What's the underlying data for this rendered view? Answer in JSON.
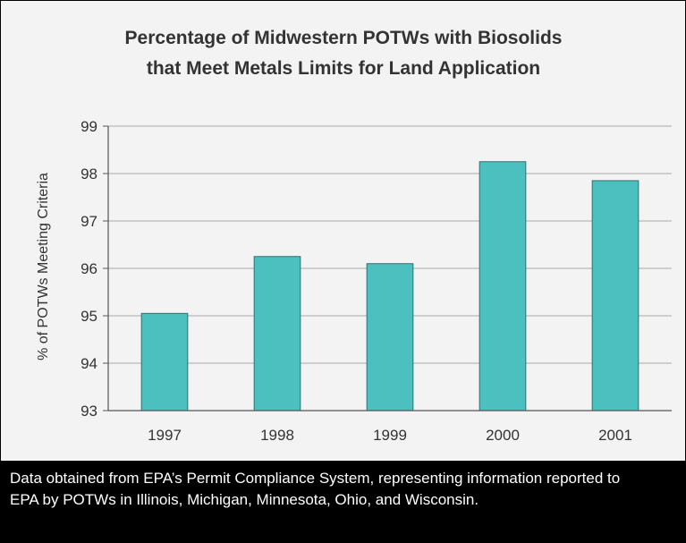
{
  "chart_data": {
    "type": "bar",
    "title_lines": [
      "Percentage of Midwestern POTWs with Biosolids",
      "that Meet Metals Limits for Land Application"
    ],
    "xlabel": "",
    "ylabel": "% of POTWs Meeting Criteria",
    "categories": [
      "1997",
      "1998",
      "1999",
      "2000",
      "2001"
    ],
    "values": [
      95.05,
      96.25,
      96.1,
      98.25,
      97.85
    ],
    "ylim": [
      93,
      99
    ],
    "yticks": [
      93,
      94,
      95,
      96,
      97,
      98,
      99
    ],
    "grid": true,
    "legend": "none",
    "bar_color": "#4cbfbf",
    "bar_edge_color": "#2a7373"
  },
  "caption": "Data obtained from EPA’s Permit Compliance System, representing information reported to EPA by POTWs in Illinois, Michigan, Minnesota, Ohio, and Wisconsin."
}
